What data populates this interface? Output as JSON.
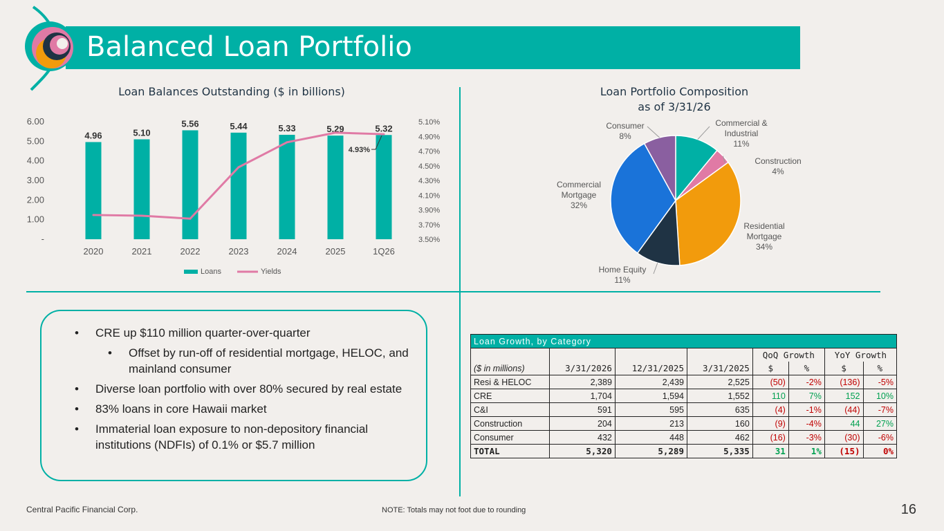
{
  "header": {
    "title": "Balanced Loan Portfolio"
  },
  "left_chart": {
    "title": "Loan Balances Outstanding ($ in billions)",
    "yticks_left": [
      "6.00",
      "5.00",
      "4.00",
      "3.00",
      "2.00",
      "1.00",
      "-"
    ],
    "yticks_right": [
      "5.10%",
      "4.90%",
      "4.70%",
      "4.50%",
      "4.30%",
      "4.10%",
      "3.90%",
      "3.70%",
      "3.50%"
    ],
    "callout": "4.93%",
    "legend_loans": "Loans",
    "legend_yields": "Yields"
  },
  "right_chart": {
    "title_line1": "Loan Portfolio Composition",
    "title_line2": "as of 3/31/26"
  },
  "chart_data": [
    {
      "type": "bar",
      "title": "Loan Balances Outstanding ($ in billions)",
      "categories": [
        "2020",
        "2021",
        "2022",
        "2023",
        "2024",
        "2025",
        "1Q26"
      ],
      "series": [
        {
          "name": "Loans",
          "type": "bar",
          "axis": "left",
          "values": [
            4.96,
            5.1,
            5.56,
            5.44,
            5.33,
            5.29,
            5.32
          ],
          "color": "#00b0a5"
        },
        {
          "name": "Yields",
          "type": "line",
          "axis": "right",
          "values": [
            3.83,
            3.82,
            3.78,
            4.48,
            4.82,
            4.95,
            4.93
          ],
          "color": "#e07aa5"
        }
      ],
      "ylim": [
        0,
        6
      ],
      "y2lim": [
        3.5,
        5.1
      ],
      "legend": "bottom",
      "grid": false
    },
    {
      "type": "pie",
      "title": "Loan Portfolio Composition as of 3/31/26",
      "slices": [
        {
          "label": "Commercial & Industrial",
          "lines": [
            "Commercial &",
            "Industrial",
            "11%"
          ],
          "value": 11,
          "color": "#00b0a5"
        },
        {
          "label": "Construction",
          "lines": [
            "Construction",
            "4%"
          ],
          "value": 4,
          "color": "#e07aa5"
        },
        {
          "label": "Residential Mortgage",
          "lines": [
            "Residential",
            "Mortgage",
            "34%"
          ],
          "value": 34,
          "color": "#f29b0c"
        },
        {
          "label": "Home Equity",
          "lines": [
            "Home Equity",
            "11%"
          ],
          "value": 11,
          "color": "#1f3344"
        },
        {
          "label": "Commercial Mortgage",
          "lines": [
            "Commercial",
            "Mortgage",
            "32%"
          ],
          "value": 32,
          "color": "#1a73d9"
        },
        {
          "label": "Consumer",
          "lines": [
            "Consumer",
            "8%"
          ],
          "value": 8,
          "color": "#8a5fa0"
        }
      ]
    }
  ],
  "bullets": [
    {
      "text": "CRE up $110 million quarter-over-quarter",
      "sub": false
    },
    {
      "text": "Offset by run-off of residential mortgage, HELOC, and mainland consumer",
      "sub": true
    },
    {
      "text": "Diverse loan portfolio with over 80% secured by real estate",
      "sub": false
    },
    {
      "text": "83% loans in core Hawaii market",
      "sub": false
    },
    {
      "text": "Immaterial loan exposure to non-depository financial institutions (NDFIs) of 0.1% or $5.7 million",
      "sub": false
    }
  ],
  "table": {
    "title": "Loan Growth, by Category",
    "qoq_header": "QoQ Growth",
    "yoy_header": "YoY Growth",
    "col_label": "($ in millions)",
    "col_2026": "3/31/2026",
    "col_2025q4": "12/31/2025",
    "col_2025": "3/31/2025",
    "dollar": "$",
    "pct": "%",
    "rows": [
      {
        "name": "Resi & HELOC",
        "a": "2,389",
        "b": "2,439",
        "c": "2,525",
        "qd": "(50)",
        "qp": "-2%",
        "yd": "(136)",
        "yp": "-5%"
      },
      {
        "name": "CRE",
        "a": "1,704",
        "b": "1,594",
        "c": "1,552",
        "qd": "110",
        "qp": "7%",
        "yd": "152",
        "yp": "10%"
      },
      {
        "name": "C&I",
        "a": "591",
        "b": "595",
        "c": "635",
        "qd": "(4)",
        "qp": "-1%",
        "yd": "(44)",
        "yp": "-7%"
      },
      {
        "name": "Construction",
        "a": "204",
        "b": "213",
        "c": "160",
        "qd": "(9)",
        "qp": "-4%",
        "yd": "44",
        "yp": "27%"
      },
      {
        "name": "Consumer",
        "a": "432",
        "b": "448",
        "c": "462",
        "qd": "(16)",
        "qp": "-3%",
        "yd": "(30)",
        "yp": "-6%"
      }
    ],
    "total": {
      "name": "TOTAL",
      "a": "5,320",
      "b": "5,289",
      "c": "5,335",
      "qd": "31",
      "qp": "1%",
      "yd": "(15)",
      "yp": "0%"
    }
  },
  "footer": {
    "company": "Central Pacific Financial Corp.",
    "note": "NOTE: Totals may not foot due to rounding",
    "page": "16"
  }
}
